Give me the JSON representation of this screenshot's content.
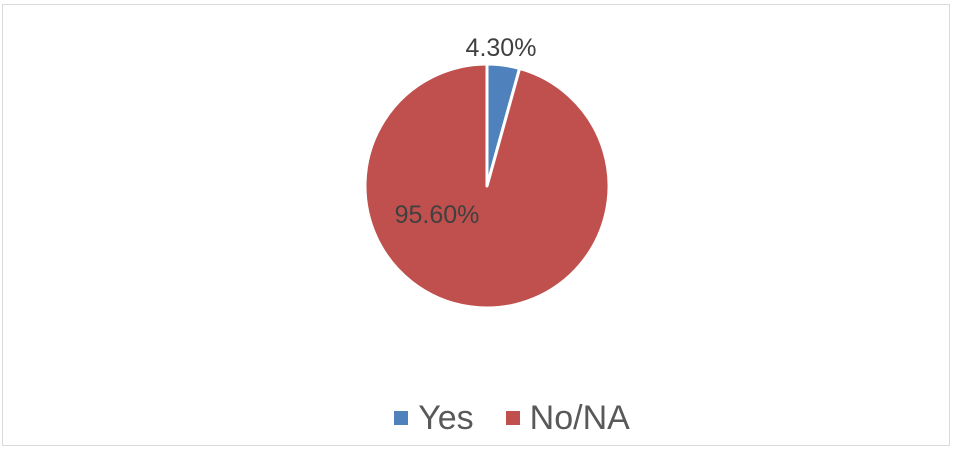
{
  "chart_data": {
    "type": "pie",
    "title": "",
    "categories": [
      "Yes",
      "No/NA"
    ],
    "values": [
      4.3,
      95.6
    ],
    "data_labels": [
      "4.30%",
      "95.60%"
    ],
    "colors": [
      "#4F81BD",
      "#C0504D"
    ],
    "legend_position": "bottom"
  }
}
